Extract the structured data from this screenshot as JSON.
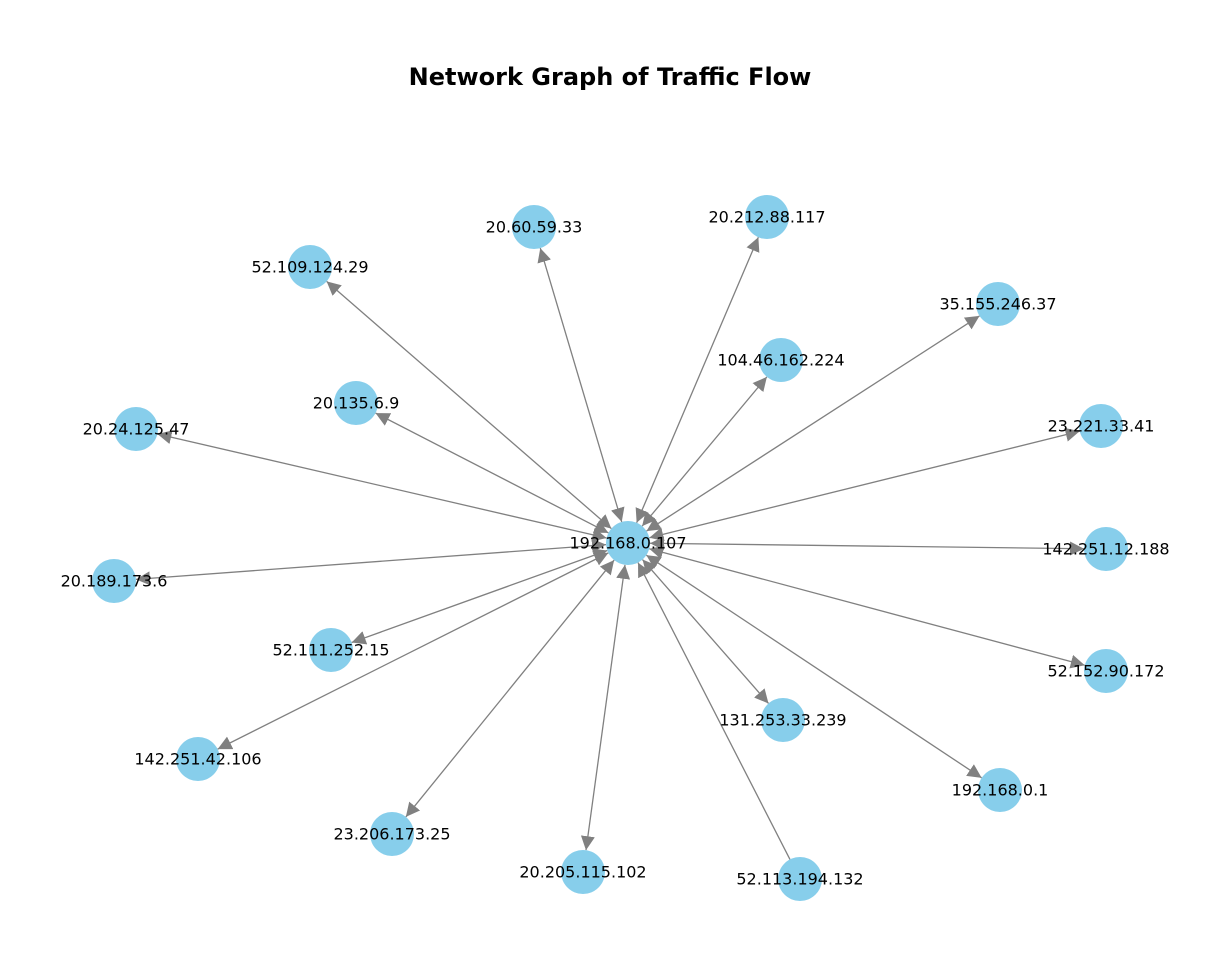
{
  "title": "Network Graph of Traffic Flow",
  "colors": {
    "node": "#87ceeb",
    "edge": "#808080",
    "text": "#000000"
  },
  "hub": "192.168.0.107",
  "nodes": [
    "192.168.0.107",
    "20.60.59.33",
    "20.212.88.117",
    "52.109.124.29",
    "35.155.246.37",
    "104.46.162.224",
    "20.135.6.9",
    "20.24.125.47",
    "23.221.33.41",
    "142.251.12.188",
    "20.189.173.6",
    "52.111.252.15",
    "52.152.90.172",
    "131.253.33.239",
    "142.251.42.106",
    "192.168.0.1",
    "23.206.173.25",
    "20.205.115.102",
    "52.113.194.132"
  ],
  "edges": [
    {
      "source": "192.168.0.107",
      "target": "20.60.59.33",
      "bidirectional": true
    },
    {
      "source": "192.168.0.107",
      "target": "20.212.88.117",
      "bidirectional": true
    },
    {
      "source": "192.168.0.107",
      "target": "52.109.124.29",
      "bidirectional": true
    },
    {
      "source": "192.168.0.107",
      "target": "35.155.246.37",
      "bidirectional": true
    },
    {
      "source": "192.168.0.107",
      "target": "104.46.162.224",
      "bidirectional": true
    },
    {
      "source": "192.168.0.107",
      "target": "20.135.6.9",
      "bidirectional": true
    },
    {
      "source": "192.168.0.107",
      "target": "20.24.125.47",
      "bidirectional": true
    },
    {
      "source": "192.168.0.107",
      "target": "23.221.33.41",
      "bidirectional": true
    },
    {
      "source": "192.168.0.107",
      "target": "142.251.12.188",
      "bidirectional": true
    },
    {
      "source": "192.168.0.107",
      "target": "20.189.173.6",
      "bidirectional": true
    },
    {
      "source": "192.168.0.107",
      "target": "52.111.252.15",
      "bidirectional": true
    },
    {
      "source": "192.168.0.107",
      "target": "52.152.90.172",
      "bidirectional": true
    },
    {
      "source": "192.168.0.107",
      "target": "131.253.33.239",
      "bidirectional": true
    },
    {
      "source": "192.168.0.107",
      "target": "142.251.42.106",
      "bidirectional": true
    },
    {
      "source": "192.168.0.107",
      "target": "192.168.0.1",
      "bidirectional": true
    },
    {
      "source": "192.168.0.107",
      "target": "23.206.173.25",
      "bidirectional": true
    },
    {
      "source": "192.168.0.107",
      "target": "20.205.115.102",
      "bidirectional": true
    },
    {
      "source": "52.113.194.132",
      "target": "192.168.0.107",
      "bidirectional": false
    }
  ]
}
